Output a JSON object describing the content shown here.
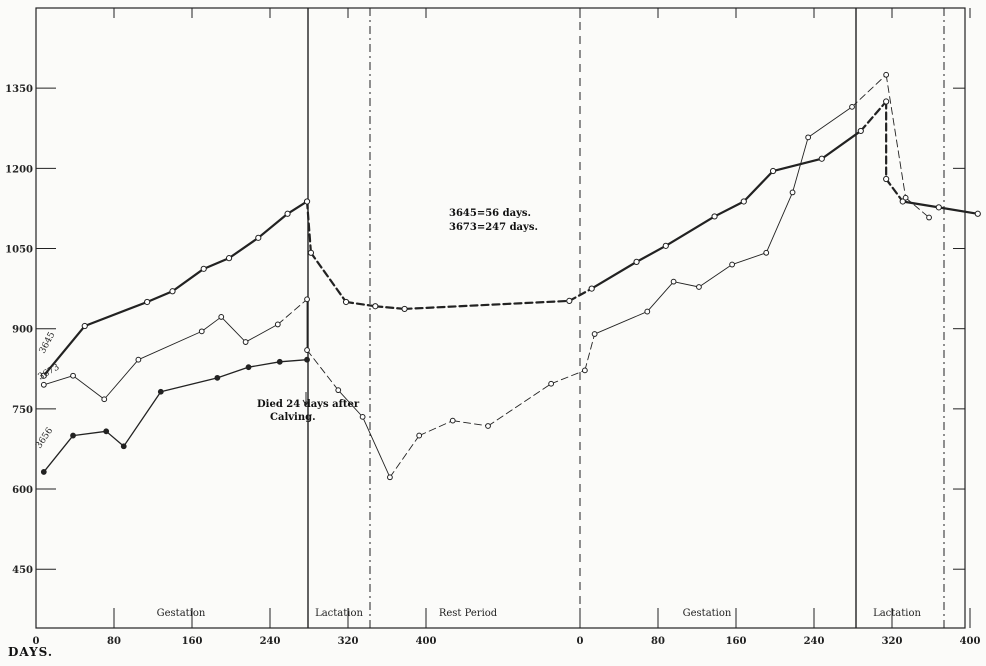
{
  "chart_data": {
    "type": "line",
    "title": "",
    "xlabel": "DAYS.",
    "ylabel": "",
    "ylim": [
      340,
      1500
    ],
    "grid": false,
    "x_axis_segments": [
      {
        "ticks": [
          "0",
          "80",
          "160",
          "240",
          "320",
          "400"
        ],
        "range": [
          0,
          400
        ]
      },
      {
        "ticks": [
          "0",
          "80",
          "160",
          "240",
          "320",
          "400"
        ],
        "range": [
          0,
          400
        ]
      }
    ],
    "y_ticks": [
      "450",
      "600",
      "750",
      "900",
      "1050",
      "1200",
      "1350"
    ],
    "y_tick_values": [
      450,
      600,
      750,
      900,
      1050,
      1200,
      1350
    ],
    "periods": [
      "Gestation",
      "Lactation",
      "Rest Period",
      "Gestation",
      "Lactation"
    ],
    "annotations": [
      "3645=56 days.",
      "3673=247 days.",
      "Died 24 days after",
      "Calving."
    ],
    "series": [
      {
        "name": "3645",
        "style": "heavy",
        "points": [
          [
            8,
            812
          ],
          [
            50,
            905
          ],
          [
            114,
            950
          ],
          [
            140,
            970
          ],
          [
            172,
            1012
          ],
          [
            198,
            1032
          ],
          [
            228,
            1070
          ],
          [
            258,
            1115
          ],
          [
            278,
            1138
          ],
          [
            282,
            1042
          ],
          [
            318,
            950
          ],
          [
            348,
            942
          ],
          [
            378,
            937
          ],
          [
            534,
            952
          ],
          [
            556,
            975
          ],
          [
            602,
            1025
          ],
          [
            632,
            1055
          ],
          [
            682,
            1110
          ],
          [
            712,
            1138
          ],
          [
            742,
            1195
          ],
          [
            792,
            1218
          ],
          [
            832,
            1270
          ],
          [
            858,
            1325
          ],
          [
            858,
            1180
          ],
          [
            875,
            1138
          ],
          [
            912,
            1127
          ],
          [
            952,
            1115
          ]
        ]
      },
      {
        "name": "3673",
        "style": "thin",
        "points": [
          [
            8,
            795
          ],
          [
            38,
            812
          ],
          [
            70,
            768
          ],
          [
            105,
            842
          ],
          [
            170,
            895
          ],
          [
            190,
            922
          ],
          [
            215,
            875
          ],
          [
            248,
            908
          ],
          [
            278,
            955
          ],
          [
            278,
            860
          ],
          [
            310,
            785
          ],
          [
            335,
            735
          ],
          [
            363,
            622
          ],
          [
            393,
            700
          ],
          [
            425,
            728
          ],
          [
            458,
            718
          ],
          [
            517,
            797
          ],
          [
            549,
            822
          ],
          [
            559,
            890
          ],
          [
            613,
            932
          ],
          [
            640,
            988
          ],
          [
            666,
            978
          ],
          [
            700,
            1020
          ],
          [
            735,
            1042
          ],
          [
            762,
            1155
          ],
          [
            778,
            1258
          ],
          [
            823,
            1315
          ],
          [
            858,
            1375
          ],
          [
            878,
            1145
          ],
          [
            902,
            1108
          ]
        ]
      },
      {
        "name": "3656",
        "style": "medium",
        "points": [
          [
            8,
            632
          ],
          [
            38,
            700
          ],
          [
            72,
            708
          ],
          [
            90,
            680
          ],
          [
            128,
            782
          ],
          [
            186,
            808
          ],
          [
            218,
            828
          ],
          [
            250,
            838
          ],
          [
            278,
            842
          ]
        ]
      }
    ]
  }
}
